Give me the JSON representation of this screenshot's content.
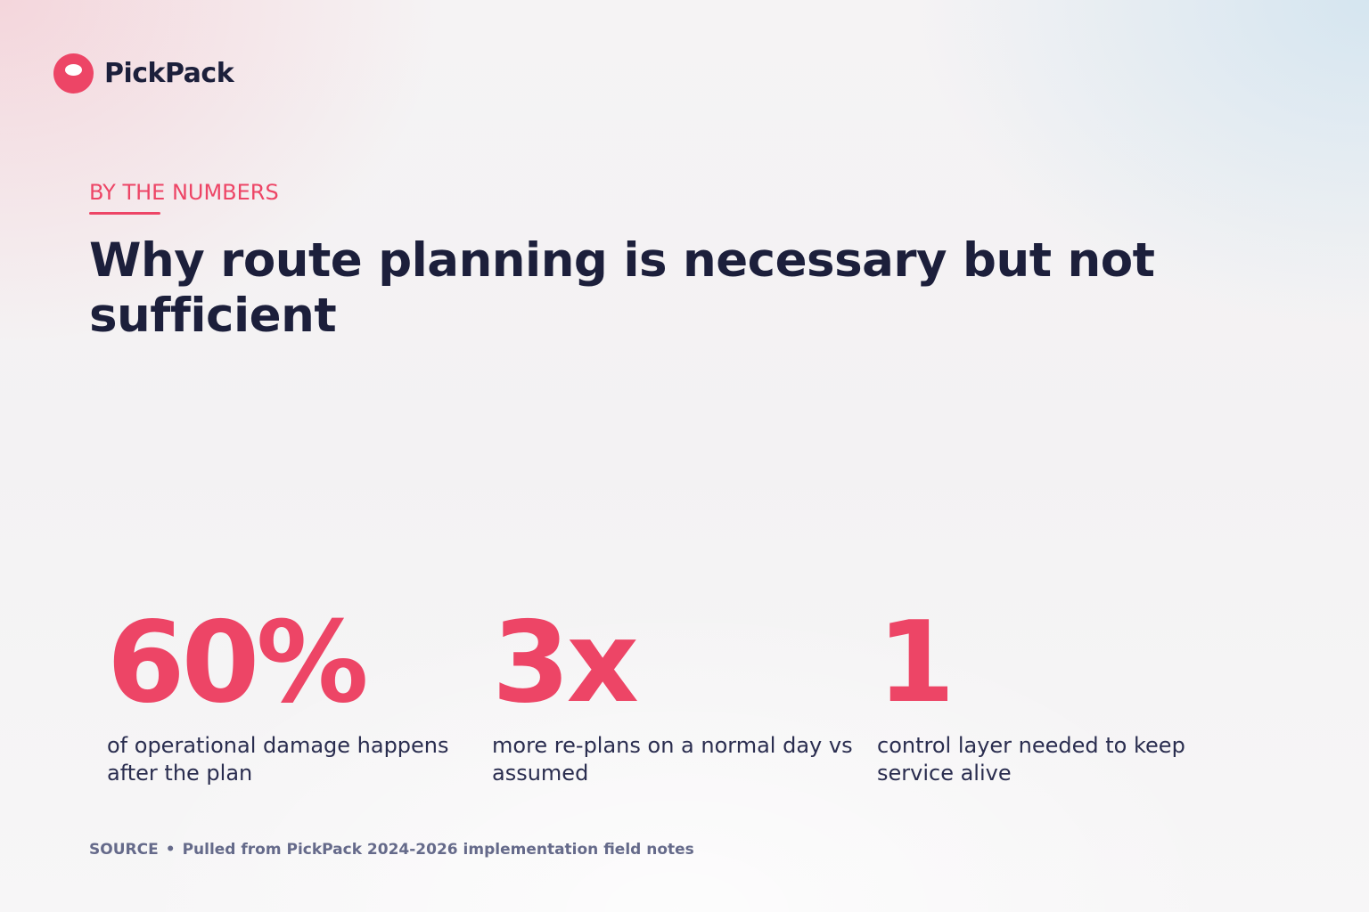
{
  "brand": {
    "name": "PickPack",
    "accent_color": "#ed4566",
    "text_color": "#1c1f3b",
    "logo_icon": "pickpack-logo-icon"
  },
  "eyebrow": "BY THE NUMBERS",
  "headline": "Why route planning is necessary but not sufficient",
  "stats": [
    {
      "value": "60%",
      "label": "of operational damage happens after the plan"
    },
    {
      "value": "3x",
      "label": "more re-plans on a normal day vs assumed"
    },
    {
      "value": "1",
      "label": "control layer needed to keep service alive"
    }
  ],
  "source": {
    "label": "SOURCE",
    "separator": "•",
    "text": "Pulled from PickPack 2024-2026 implementation field notes"
  }
}
